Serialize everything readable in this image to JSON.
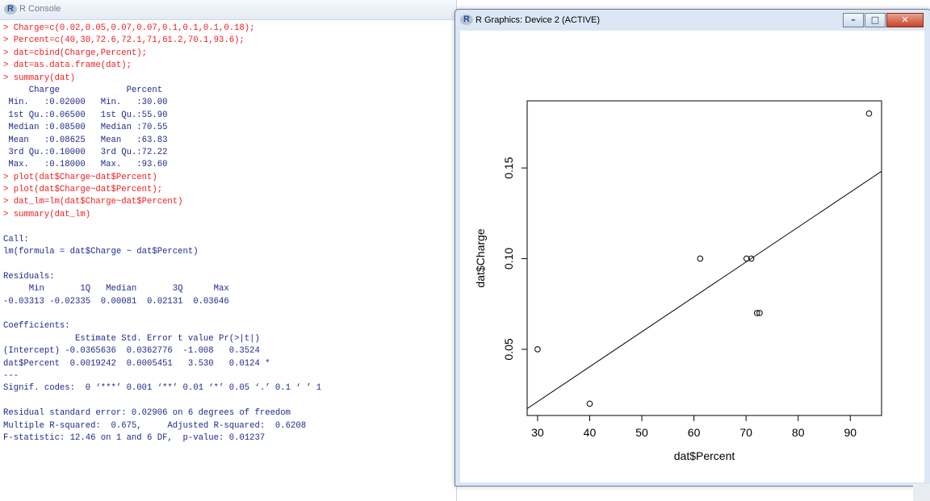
{
  "console": {
    "title": "R Console",
    "lines": [
      {
        "text": "> Charge=c(0.02,0.05,0.07,0.07,0.1,0.1,0.1,0.18);",
        "kind": "cmd"
      },
      {
        "text": "> Percent=c(40,30,72.6,72.1,71,61.2,70.1,93.6);",
        "kind": "cmd"
      },
      {
        "text": "> dat=cbind(Charge,Percent);",
        "kind": "cmd"
      },
      {
        "text": "> dat=as.data.frame(dat);",
        "kind": "cmd"
      },
      {
        "text": "> summary(dat)",
        "kind": "cmd"
      },
      {
        "text": "     Charge             Percent",
        "kind": "out"
      },
      {
        "text": " Min.   :0.02000   Min.   :30.00",
        "kind": "out"
      },
      {
        "text": " 1st Qu.:0.06500   1st Qu.:55.90",
        "kind": "out"
      },
      {
        "text": " Median :0.08500   Median :70.55",
        "kind": "out"
      },
      {
        "text": " Mean   :0.08625   Mean   :63.83",
        "kind": "out"
      },
      {
        "text": " 3rd Qu.:0.10000   3rd Qu.:72.22",
        "kind": "out"
      },
      {
        "text": " Max.   :0.18000   Max.   :93.60",
        "kind": "out"
      },
      {
        "text": "> plot(dat$Charge~dat$Percent)",
        "kind": "cmd"
      },
      {
        "text": "> plot(dat$Charge~dat$Percent);",
        "kind": "cmd"
      },
      {
        "text": "> dat_lm=lm(dat$Charge~dat$Percent)",
        "kind": "cmd"
      },
      {
        "text": "> summary(dat_lm)",
        "kind": "cmd"
      },
      {
        "text": "",
        "kind": "out"
      },
      {
        "text": "Call:",
        "kind": "out"
      },
      {
        "text": "lm(formula = dat$Charge ~ dat$Percent)",
        "kind": "out"
      },
      {
        "text": "",
        "kind": "out"
      },
      {
        "text": "Residuals:",
        "kind": "out"
      },
      {
        "text": "     Min       1Q   Median       3Q      Max",
        "kind": "out"
      },
      {
        "text": "-0.03313 -0.02335  0.00081  0.02131  0.03646",
        "kind": "out"
      },
      {
        "text": "",
        "kind": "out"
      },
      {
        "text": "Coefficients:",
        "kind": "out"
      },
      {
        "text": "              Estimate Std. Error t value Pr(>|t|)",
        "kind": "out"
      },
      {
        "text": "(Intercept) -0.0365636  0.0362776  -1.008   0.3524",
        "kind": "out"
      },
      {
        "text": "dat$Percent  0.0019242  0.0005451   3.530   0.0124 *",
        "kind": "out"
      },
      {
        "text": "---",
        "kind": "out"
      },
      {
        "text": "Signif. codes:  0 ‘***’ 0.001 ‘**’ 0.01 ‘*’ 0.05 ‘.’ 0.1 ‘ ’ 1",
        "kind": "out"
      },
      {
        "text": "",
        "kind": "out"
      },
      {
        "text": "Residual standard error: 0.02906 on 6 degrees of freedom",
        "kind": "out"
      },
      {
        "text": "Multiple R-squared:  0.675,     Adjusted R-squared:  0.6208",
        "kind": "out"
      },
      {
        "text": "F-statistic: 12.46 on 1 and 6 DF,  p-value: 0.01237",
        "kind": "out"
      }
    ]
  },
  "graphics": {
    "title": "R Graphics: Device 2 (ACTIVE)",
    "minimize_label": "–",
    "maximize_label": "□",
    "close_label": "✕"
  },
  "colors": {
    "command": "#ee1c1c",
    "output": "#1e2a8a"
  },
  "icons": [
    "r-logo-icon",
    "minimize-icon",
    "maximize-icon",
    "close-icon"
  ],
  "chart_data": {
    "type": "scatter",
    "xlabel": "dat$Percent",
    "ylabel": "dat$Charge",
    "xlim": [
      28,
      96
    ],
    "ylim": [
      0.0135,
      0.187
    ],
    "x_ticks": [
      30,
      40,
      50,
      60,
      70,
      80,
      90
    ],
    "y_ticks": [
      0.05,
      0.1,
      0.15
    ],
    "x_tick_labels": [
      "30",
      "40",
      "50",
      "60",
      "70",
      "80",
      "90"
    ],
    "y_tick_labels": [
      "0.05",
      "0.10",
      "0.15"
    ],
    "points": {
      "x": [
        40,
        30,
        72.6,
        72.1,
        71,
        61.2,
        70.1,
        93.6
      ],
      "y": [
        0.02,
        0.05,
        0.07,
        0.07,
        0.1,
        0.1,
        0.1,
        0.18
      ]
    },
    "regression_line": {
      "intercept": -0.0365636,
      "slope": 0.0019242
    },
    "grid": false,
    "legend": false
  }
}
